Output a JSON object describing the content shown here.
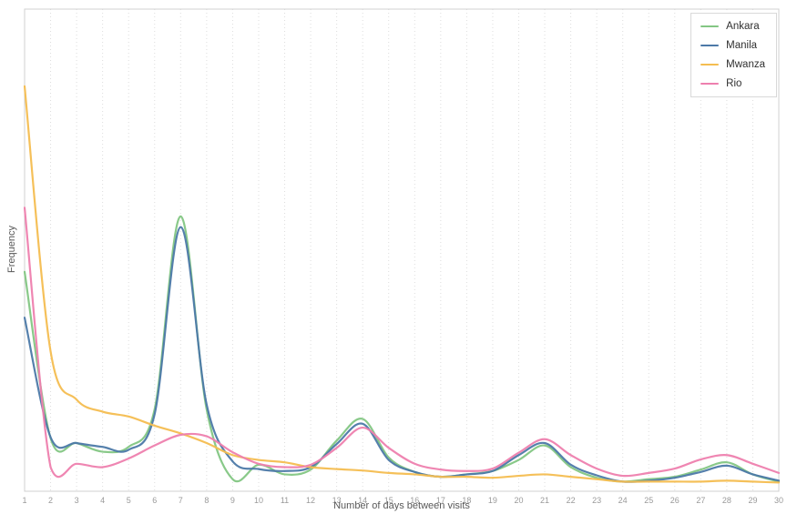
{
  "chart_data": {
    "type": "line",
    "title": "",
    "xlabel": "Number of days between visits",
    "ylabel": "Frequency",
    "x": [
      1,
      2,
      3,
      4,
      5,
      6,
      7,
      8,
      9,
      10,
      11,
      12,
      13,
      14,
      15,
      16,
      17,
      18,
      19,
      20,
      21,
      22,
      23,
      24,
      25,
      26,
      27,
      28,
      29,
      30
    ],
    "xlim": [
      1,
      30
    ],
    "ylim": [
      0,
      1
    ],
    "y_tick_labels_visible": false,
    "grid": "vertical-dotted",
    "curve": "smooth",
    "legend_position": "top-right-inside",
    "series": [
      {
        "name": "Ankara",
        "color": "#83c683",
        "values": [
          0.455,
          0.11,
          0.1,
          0.082,
          0.092,
          0.17,
          0.57,
          0.17,
          0.025,
          0.055,
          0.035,
          0.045,
          0.105,
          0.15,
          0.07,
          0.04,
          0.03,
          0.035,
          0.042,
          0.065,
          0.095,
          0.05,
          0.028,
          0.02,
          0.025,
          0.03,
          0.045,
          0.06,
          0.035,
          0.02
        ]
      },
      {
        "name": "Manila",
        "color": "#4c79a8",
        "values": [
          0.36,
          0.112,
          0.1,
          0.092,
          0.086,
          0.16,
          0.548,
          0.18,
          0.062,
          0.046,
          0.042,
          0.05,
          0.098,
          0.14,
          0.065,
          0.04,
          0.03,
          0.035,
          0.042,
          0.075,
          0.1,
          0.055,
          0.033,
          0.02,
          0.022,
          0.028,
          0.04,
          0.053,
          0.035,
          0.022
        ]
      },
      {
        "name": "Mwanza",
        "color": "#f4bd50",
        "values": [
          0.84,
          0.29,
          0.19,
          0.165,
          0.155,
          0.136,
          0.12,
          0.1,
          0.075,
          0.065,
          0.06,
          0.05,
          0.046,
          0.043,
          0.038,
          0.035,
          0.03,
          0.03,
          0.028,
          0.032,
          0.035,
          0.03,
          0.025,
          0.02,
          0.02,
          0.02,
          0.02,
          0.022,
          0.02,
          0.018
        ]
      },
      {
        "name": "Rio",
        "color": "#ee7fae",
        "values": [
          0.588,
          0.05,
          0.057,
          0.05,
          0.068,
          0.095,
          0.117,
          0.114,
          0.081,
          0.057,
          0.05,
          0.055,
          0.09,
          0.132,
          0.09,
          0.057,
          0.045,
          0.042,
          0.047,
          0.08,
          0.108,
          0.075,
          0.047,
          0.032,
          0.038,
          0.047,
          0.066,
          0.075,
          0.057,
          0.038
        ]
      }
    ]
  },
  "style": {
    "grid_color": "#dddddd",
    "border_color": "#d0d0d0",
    "tick_label_color": "#9a9a9a",
    "axis_title_color": "#585858"
  }
}
